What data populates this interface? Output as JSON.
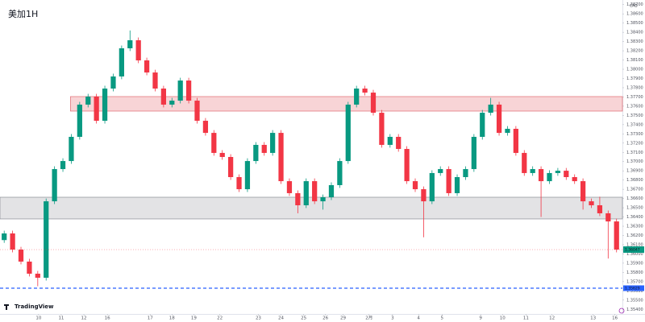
{
  "chart_data": {
    "type": "candlestick",
    "title": "美加1H",
    "currency": "CAD",
    "watermark": "TradingView",
    "up_color": "#089981",
    "down_color": "#f23645",
    "ylim": [
      1.3535,
      1.3875
    ],
    "xlim": [
      -0.5,
      73.7
    ],
    "yticks": [
      {
        "value": 1.354,
        "label": "1.35400"
      },
      {
        "value": 1.355,
        "label": "1.35500"
      },
      {
        "value": 1.356,
        "label": "1.35600"
      },
      {
        "value": 1.357,
        "label": "1.35700"
      },
      {
        "value": 1.358,
        "label": "1.35800"
      },
      {
        "value": 1.359,
        "label": "1.35900"
      },
      {
        "value": 1.36,
        "label": "1.36000"
      },
      {
        "value": 1.361,
        "label": "1.36100"
      },
      {
        "value": 1.362,
        "label": "1.36200"
      },
      {
        "value": 1.363,
        "label": "1.36300"
      },
      {
        "value": 1.364,
        "label": "1.36400"
      },
      {
        "value": 1.365,
        "label": "1.36500"
      },
      {
        "value": 1.366,
        "label": "1.36600"
      },
      {
        "value": 1.367,
        "label": "1.36700"
      },
      {
        "value": 1.368,
        "label": "1.36800"
      },
      {
        "value": 1.369,
        "label": "1.36900"
      },
      {
        "value": 1.37,
        "label": "1.37000"
      },
      {
        "value": 1.371,
        "label": "1.37100"
      },
      {
        "value": 1.372,
        "label": "1.37200"
      },
      {
        "value": 1.373,
        "label": "1.37300"
      },
      {
        "value": 1.374,
        "label": "1.37400"
      },
      {
        "value": 1.375,
        "label": "1.37500"
      },
      {
        "value": 1.376,
        "label": "1.37600"
      },
      {
        "value": 1.377,
        "label": "1.37700"
      },
      {
        "value": 1.378,
        "label": "1.37800"
      },
      {
        "value": 1.379,
        "label": "1.37900"
      },
      {
        "value": 1.38,
        "label": "1.38000"
      },
      {
        "value": 1.381,
        "label": "1.38100"
      },
      {
        "value": 1.382,
        "label": "1.38200"
      },
      {
        "value": 1.383,
        "label": "1.38300"
      },
      {
        "value": 1.384,
        "label": "1.38400"
      },
      {
        "value": 1.385,
        "label": "1.38500"
      },
      {
        "value": 1.386,
        "label": "1.38600"
      },
      {
        "value": 1.387,
        "label": "1.38700"
      }
    ],
    "xticks": [
      {
        "value": 4.1,
        "label": "10"
      },
      {
        "value": 6.8,
        "label": "11"
      },
      {
        "value": 9.5,
        "label": "12"
      },
      {
        "value": 12.3,
        "label": "16"
      },
      {
        "value": 17.4,
        "label": "17"
      },
      {
        "value": 20.0,
        "label": "18"
      },
      {
        "value": 22.6,
        "label": "19"
      },
      {
        "value": 25.7,
        "label": "22"
      },
      {
        "value": 30.3,
        "label": "23"
      },
      {
        "value": 33.0,
        "label": "24"
      },
      {
        "value": 35.7,
        "label": "25"
      },
      {
        "value": 38.3,
        "label": "26"
      },
      {
        "value": 40.4,
        "label": "29"
      },
      {
        "value": 43.5,
        "label": "2月"
      },
      {
        "value": 46.3,
        "label": "3"
      },
      {
        "value": 49.4,
        "label": "4"
      },
      {
        "value": 52.2,
        "label": "5"
      },
      {
        "value": 56.8,
        "label": "9"
      },
      {
        "value": 59.4,
        "label": "10"
      },
      {
        "value": 62.2,
        "label": "11"
      },
      {
        "value": 65.3,
        "label": "12"
      },
      {
        "value": 70.2,
        "label": "13"
      },
      {
        "value": 72.8,
        "label": "16"
      }
    ],
    "zones": [
      {
        "from": 1.37547,
        "to": 1.37704,
        "color": "#f8d4d6",
        "border": "#e06b73"
      },
      {
        "from": 1.36379,
        "to": 1.36614,
        "color": "#e3e3e5",
        "border": "#8a8d96"
      }
    ],
    "hline": {
      "value": 1.35629,
      "label": "1.35629",
      "color": "#2962ff"
    },
    "last_price": {
      "value": 1.36047,
      "label": "1.36047"
    },
    "ohlc": [
      [
        1.3615,
        1.36252,
        1.3612,
        1.36222
      ],
      [
        1.36222,
        1.36252,
        1.36017,
        1.36047
      ],
      [
        1.36047,
        1.36077,
        1.35887,
        1.35917
      ],
      [
        1.35917,
        1.35947,
        1.35756,
        1.35786
      ],
      [
        1.35786,
        1.35816,
        1.3565,
        1.35742
      ],
      [
        1.35742,
        1.366,
        1.35712,
        1.3657
      ],
      [
        1.3657,
        1.36949,
        1.3654,
        1.36919
      ],
      [
        1.36919,
        1.37036,
        1.36889,
        1.37006
      ],
      [
        1.37006,
        1.37298,
        1.36976,
        1.37268
      ],
      [
        1.37268,
        1.37647,
        1.37238,
        1.37617
      ],
      [
        1.37617,
        1.37734,
        1.37587,
        1.37704
      ],
      [
        1.37704,
        1.37734,
        1.37412,
        1.37442
      ],
      [
        1.37442,
        1.37821,
        1.37412,
        1.37791
      ],
      [
        1.37791,
        1.37952,
        1.37761,
        1.37922
      ],
      [
        1.37922,
        1.38257,
        1.37892,
        1.38227
      ],
      [
        1.38227,
        1.3842,
        1.38197,
        1.38314
      ],
      [
        1.38314,
        1.38344,
        1.38066,
        1.38096
      ],
      [
        1.38096,
        1.38126,
        1.37935,
        1.37965
      ],
      [
        1.37965,
        1.37995,
        1.37761,
        1.37791
      ],
      [
        1.37791,
        1.37821,
        1.37587,
        1.37617
      ],
      [
        1.37617,
        1.3769,
        1.37587,
        1.3766
      ],
      [
        1.3766,
        1.37908,
        1.3763,
        1.37878
      ],
      [
        1.37878,
        1.37908,
        1.3763,
        1.3766
      ],
      [
        1.3766,
        1.3769,
        1.37412,
        1.37442
      ],
      [
        1.37442,
        1.37472,
        1.37281,
        1.37311
      ],
      [
        1.37311,
        1.37341,
        1.37064,
        1.37094
      ],
      [
        1.37094,
        1.37124,
        1.3702,
        1.3705
      ],
      [
        1.3705,
        1.3708,
        1.36802,
        1.36832
      ],
      [
        1.36832,
        1.36862,
        1.36671,
        1.36701
      ],
      [
        1.36701,
        1.37036,
        1.36671,
        1.37006
      ],
      [
        1.37006,
        1.37211,
        1.36976,
        1.37181
      ],
      [
        1.37181,
        1.37211,
        1.37064,
        1.37094
      ],
      [
        1.37094,
        1.37341,
        1.37064,
        1.37311
      ],
      [
        1.37311,
        1.37341,
        1.36758,
        1.36788
      ],
      [
        1.36788,
        1.36818,
        1.36628,
        1.36658
      ],
      [
        1.36658,
        1.36688,
        1.3644,
        1.36527
      ],
      [
        1.36527,
        1.36818,
        1.36497,
        1.36788
      ],
      [
        1.36788,
        1.36818,
        1.3654,
        1.3657
      ],
      [
        1.3657,
        1.36644,
        1.3648,
        1.36614
      ],
      [
        1.36614,
        1.36775,
        1.36584,
        1.36745
      ],
      [
        1.36745,
        1.37036,
        1.36715,
        1.37006
      ],
      [
        1.37006,
        1.37647,
        1.36976,
        1.37617
      ],
      [
        1.37617,
        1.37821,
        1.37587,
        1.37791
      ],
      [
        1.37791,
        1.37821,
        1.37717,
        1.37747
      ],
      [
        1.37747,
        1.37777,
        1.37499,
        1.37529
      ],
      [
        1.37529,
        1.37559,
        1.37151,
        1.37181
      ],
      [
        1.37181,
        1.37298,
        1.37151,
        1.37268
      ],
      [
        1.37268,
        1.37298,
        1.37107,
        1.37137
      ],
      [
        1.37137,
        1.37167,
        1.36758,
        1.36788
      ],
      [
        1.36788,
        1.36818,
        1.36671,
        1.36701
      ],
      [
        1.36701,
        1.36731,
        1.3618,
        1.3657
      ],
      [
        1.3657,
        1.36906,
        1.3654,
        1.36876
      ],
      [
        1.36876,
        1.36949,
        1.36846,
        1.36919
      ],
      [
        1.36919,
        1.36949,
        1.36628,
        1.36658
      ],
      [
        1.36658,
        1.36862,
        1.36628,
        1.36832
      ],
      [
        1.36832,
        1.36949,
        1.36802,
        1.36919
      ],
      [
        1.36919,
        1.37298,
        1.36889,
        1.37268
      ],
      [
        1.37268,
        1.37559,
        1.37238,
        1.37529
      ],
      [
        1.37529,
        1.3769,
        1.37499,
        1.37617
      ],
      [
        1.37617,
        1.37647,
        1.37281,
        1.37311
      ],
      [
        1.37311,
        1.37385,
        1.37281,
        1.37355
      ],
      [
        1.37355,
        1.37385,
        1.37064,
        1.37094
      ],
      [
        1.37094,
        1.37124,
        1.36846,
        1.36876
      ],
      [
        1.36876,
        1.36949,
        1.36846,
        1.36919
      ],
      [
        1.36919,
        1.36949,
        1.364,
        1.36788
      ],
      [
        1.36788,
        1.36906,
        1.36758,
        1.36876
      ],
      [
        1.36876,
        1.36931,
        1.36846,
        1.36901
      ],
      [
        1.36901,
        1.36931,
        1.36802,
        1.36832
      ],
      [
        1.36832,
        1.36862,
        1.36758,
        1.36788
      ],
      [
        1.36788,
        1.36818,
        1.3648,
        1.3657
      ],
      [
        1.3657,
        1.366,
        1.36497,
        1.36527
      ],
      [
        1.36527,
        1.3662,
        1.3641,
        1.3644
      ],
      [
        1.3644,
        1.3647,
        1.3595,
        1.36352
      ],
      [
        1.36352,
        1.36382,
        1.36017,
        1.36047
      ]
    ]
  }
}
